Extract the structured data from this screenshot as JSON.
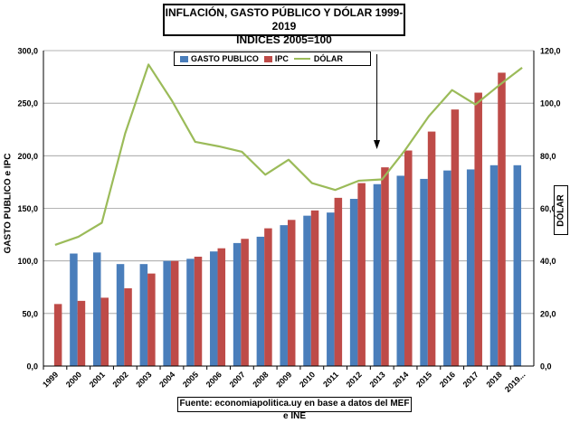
{
  "chart_data": {
    "type": "bar",
    "title": "INFLACIÓN, GASTO PÚBLICO Y DÓLAR 1999-2019",
    "subtitle": "INDICES 2005=100",
    "categories": [
      "1999",
      "2000",
      "2001",
      "2002",
      "2003",
      "2004",
      "2005",
      "2006",
      "2007",
      "2008",
      "2009",
      "2010",
      "2011",
      "2012",
      "2013",
      "2014",
      "2015",
      "2016",
      "2017",
      "2018",
      "2019..."
    ],
    "series": [
      {
        "name": "GASTO PUBLICO",
        "type": "bar",
        "axis": "left",
        "color": "#4a7ebb",
        "values": [
          null,
          107,
          108,
          97,
          97,
          100,
          102,
          109,
          117,
          123,
          134,
          143,
          146,
          159,
          173,
          181,
          178,
          186,
          187,
          191,
          191
        ]
      },
      {
        "name": "IPC",
        "type": "bar",
        "axis": "left",
        "color": "#be4b48",
        "values": [
          59,
          62,
          65,
          74,
          88,
          100,
          104,
          112,
          121,
          131,
          139,
          148,
          160,
          174,
          189,
          205,
          223,
          244,
          260,
          279,
          null
        ]
      },
      {
        "name": "DÓLAR",
        "type": "line",
        "axis": "right",
        "color": "#9bbb59",
        "values": [
          46.1,
          49.2,
          54.5,
          88.5,
          114.7,
          101.0,
          85.3,
          83.6,
          81.5,
          72.8,
          78.5,
          69.6,
          67.0,
          70.5,
          71.0,
          82.3,
          95.0,
          105.0,
          99.5,
          106.7,
          113.5
        ]
      }
    ],
    "ylim": [
      0,
      300
    ],
    "y2lim": [
      0,
      120
    ],
    "yticks": [
      "0,0",
      "50,0",
      "100,0",
      "150,0",
      "200,0",
      "250,0",
      "300,0"
    ],
    "y2ticks": [
      "0,0",
      "20,0",
      "40,0",
      "60,0",
      "80,0",
      "100,0",
      "120,0"
    ],
    "ylabel": "GASTO PUBLICO e IPC",
    "y2label": "DÓLAR",
    "legend_position": "top-center",
    "grid": true,
    "annotation": "arrow pointing down at 2013",
    "source": "Fuente: economiapolitica.uy en base a datos del MEF e INE"
  },
  "colors": {
    "gasto": "#4a7ebb",
    "ipc": "#be4b48",
    "dolar": "#9bbb59",
    "grid": "#9a9a9a"
  }
}
